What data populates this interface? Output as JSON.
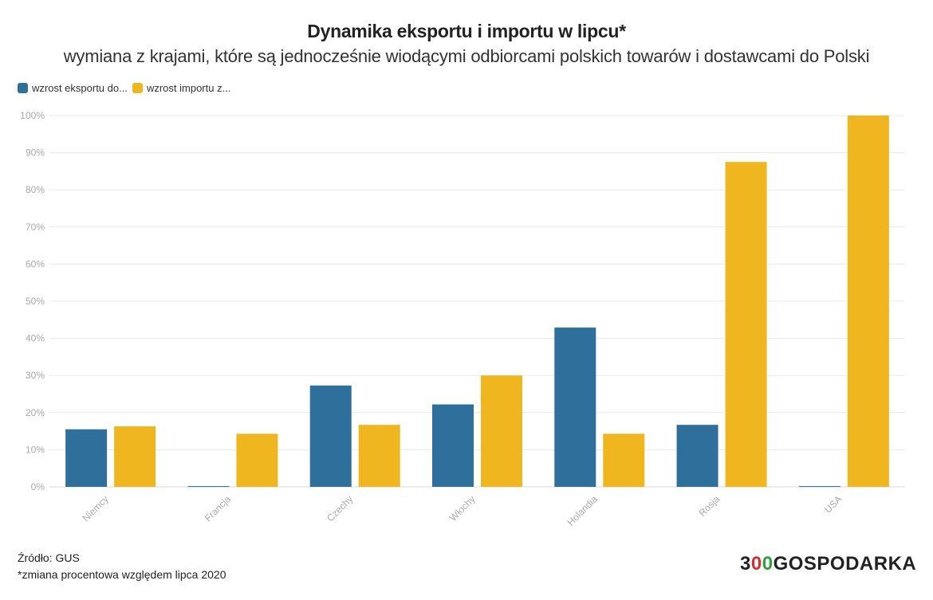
{
  "title": "Dynamika eksportu i importu w lipcu*",
  "subtitle": "wymiana z krajami, które są jednocześnie wiodącymi odbiorcami polskich towarów i dostawcami do Polski",
  "legend": [
    {
      "label": "wzrost eksportu do...",
      "color": "#2e6f9c"
    },
    {
      "label": "wzrost importu z...",
      "color": "#efb61f"
    }
  ],
  "source": "Źródło: GUS",
  "note": "*zmiana procentowa względem lipca 2020",
  "logo": {
    "part1": "3",
    "part2": "0",
    "part3": "0",
    "part4": "GOSPODARKA"
  },
  "chart_data": {
    "type": "bar",
    "title": "Dynamika eksportu i importu w lipcu*",
    "xlabel": "",
    "ylabel": "",
    "ylim": [
      0,
      100
    ],
    "yticks": [
      "0%",
      "10%",
      "20%",
      "30%",
      "40%",
      "50%",
      "60%",
      "70%",
      "80%",
      "90%",
      "100%"
    ],
    "categories": [
      "Niemcy",
      "Francja",
      "Czechy",
      "Włochy",
      "Holandia",
      "Rosja",
      "USA"
    ],
    "series": [
      {
        "name": "wzrost eksportu do...",
        "color": "#2e6f9c",
        "values": [
          15.5,
          0.2,
          27.3,
          22.2,
          42.9,
          16.7,
          0.2
        ]
      },
      {
        "name": "wzrost importu z...",
        "color": "#efb61f",
        "values": [
          16.3,
          14.3,
          16.7,
          30.0,
          14.3,
          87.5,
          100.0
        ]
      }
    ]
  }
}
